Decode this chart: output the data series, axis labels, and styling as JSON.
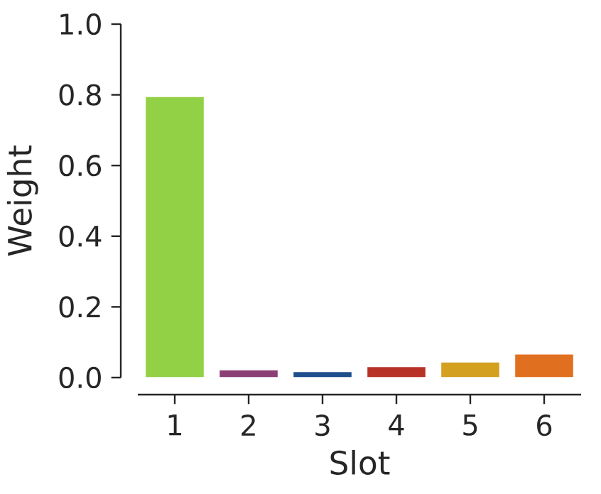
{
  "chart_data": {
    "type": "bar",
    "xlabel": "Slot",
    "ylabel": "Weight",
    "categories": [
      "1",
      "2",
      "3",
      "4",
      "5",
      "6"
    ],
    "values": [
      0.795,
      0.022,
      0.017,
      0.031,
      0.044,
      0.067
    ],
    "colors": [
      "#92d045",
      "#8b3f74",
      "#1f4e8c",
      "#b83227",
      "#d4a020",
      "#e07020"
    ],
    "ylim": [
      0,
      1
    ],
    "yticks": [
      {
        "value": 0,
        "label": "0.0"
      },
      {
        "value": 0.2,
        "label": "0.2"
      },
      {
        "value": 0.4,
        "label": "0.4"
      },
      {
        "value": 0.6,
        "label": "0.6"
      },
      {
        "value": 0.8,
        "label": "0.8"
      },
      {
        "value": 1,
        "label": "1.0"
      }
    ]
  }
}
